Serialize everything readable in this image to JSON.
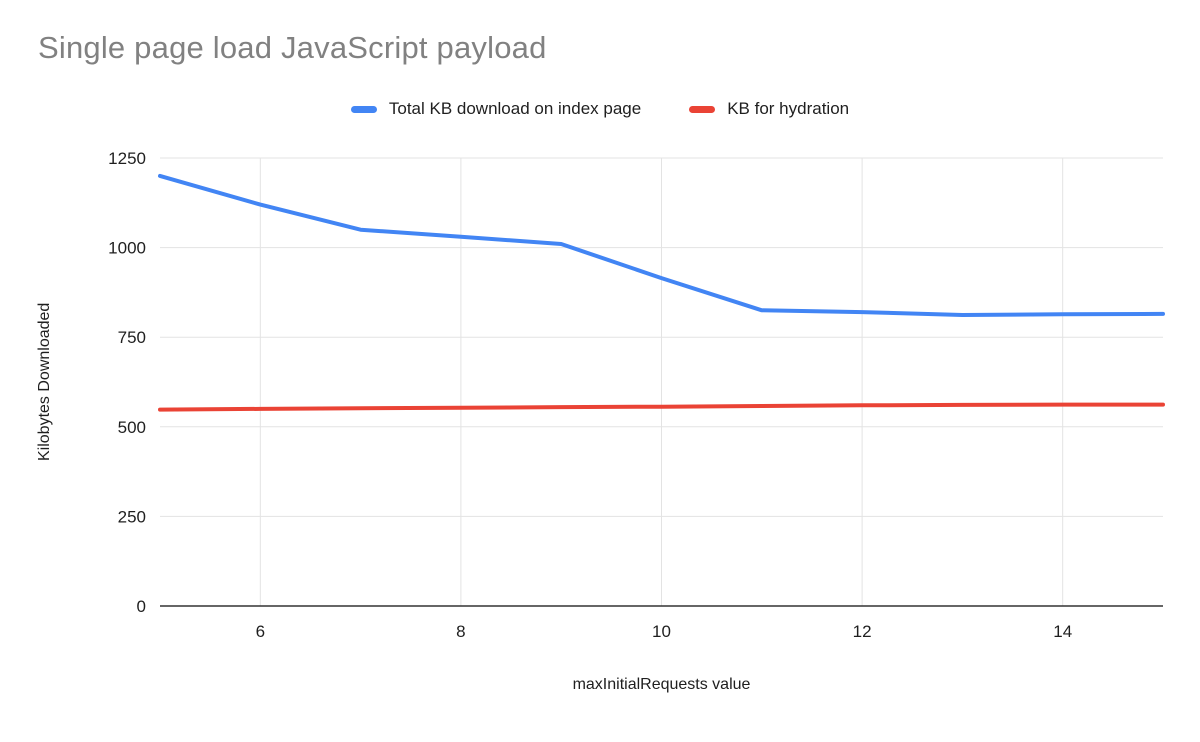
{
  "chart_data": {
    "type": "line",
    "title": "Single page load JavaScript payload",
    "xlabel": "maxInitialRequests value",
    "ylabel": "Kilobytes Downloaded",
    "x": [
      5,
      6,
      7,
      8,
      9,
      10,
      11,
      12,
      13,
      14,
      15
    ],
    "series": [
      {
        "name": "Total KB download on index page",
        "color": "#4285f4",
        "values": [
          1200,
          1120,
          1050,
          1030,
          1010,
          915,
          825,
          820,
          812,
          814,
          815
        ]
      },
      {
        "name": "KB for hydration",
        "color": "#ea4335",
        "values": [
          548,
          550,
          552,
          553,
          555,
          556,
          558,
          560,
          561,
          562,
          562
        ]
      }
    ],
    "xlim": [
      5,
      15
    ],
    "ylim": [
      0,
      1250
    ],
    "x_ticks": [
      6,
      8,
      10,
      12,
      14
    ],
    "y_ticks": [
      0,
      250,
      500,
      750,
      1000,
      1250
    ],
    "grid": true,
    "legend_position": "top",
    "gridline_color": "#e3e3e3",
    "axis_color": "#333333",
    "title_color": "#818181"
  }
}
